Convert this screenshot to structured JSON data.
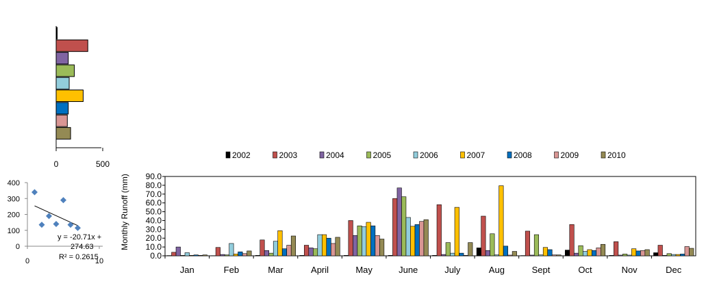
{
  "colors": {
    "series": [
      "#000000",
      "#C0504D",
      "#8064A2",
      "#9BBB59",
      "#92CDDC",
      "#FFC000",
      "#0070C0",
      "#D99694",
      "#948A54"
    ],
    "scatter_marker": "#4F81BD"
  },
  "chart_data": [
    {
      "type": "bar",
      "orientation": "horizontal",
      "series_names": [
        "2002",
        "2003",
        "2004",
        "2005",
        "2006",
        "2007",
        "2008",
        "2009",
        "2010"
      ],
      "values": [
        10,
        340,
        130,
        195,
        140,
        290,
        130,
        120,
        155
      ],
      "xlim": [
        0,
        500
      ],
      "xticks": [
        "0",
        "500"
      ],
      "title": "",
      "xlabel": "",
      "ylabel": ""
    },
    {
      "type": "scatter",
      "x": [
        1,
        2,
        3,
        4,
        5,
        6,
        7
      ],
      "y": [
        340,
        135,
        190,
        140,
        290,
        135,
        115
      ],
      "xlim": [
        0,
        10
      ],
      "ylim": [
        0,
        400
      ],
      "xticks": [
        "0",
        "10"
      ],
      "yticks": [
        "0",
        "100",
        "200",
        "300",
        "400"
      ],
      "trendline": {
        "slope": -20.71,
        "intercept": 274.63
      },
      "equation": "y = -20.71x + 274.63",
      "r2": "R² = 0.2615"
    },
    {
      "type": "bar",
      "categories": [
        "Jan",
        "Feb",
        "Mar",
        "April",
        "May",
        "June",
        "July",
        "Aug",
        "Sept",
        "Oct",
        "Nov",
        "Dec"
      ],
      "ylabel": "Monthly  Runoff (mm)",
      "ylim": [
        0,
        90
      ],
      "yticks": [
        "0.0",
        "10.0",
        "20.0",
        "30.0",
        "40.0",
        "50.0",
        "60.0",
        "70.0",
        "80.0",
        "90.0"
      ],
      "legend_position": "top",
      "series": [
        {
          "name": "2002",
          "values": [
            0.3,
            0.2,
            0.5,
            0.5,
            0.5,
            0.5,
            0.5,
            9,
            0.3,
            6.5,
            0.5,
            3.5
          ]
        },
        {
          "name": "2003",
          "values": [
            4,
            9.5,
            18,
            12,
            40,
            65,
            58,
            45,
            28,
            35.5,
            16,
            12
          ]
        },
        {
          "name": "2004",
          "values": [
            10,
            1.5,
            6,
            9,
            23,
            77,
            1.5,
            6,
            0.8,
            3,
            0.8,
            0.5
          ]
        },
        {
          "name": "2005",
          "values": [
            0.5,
            1,
            3,
            8,
            34,
            67,
            15,
            25,
            24,
            11.5,
            2,
            2.5
          ]
        },
        {
          "name": "2006",
          "values": [
            3.5,
            14,
            16.5,
            24,
            33,
            43.5,
            3,
            1,
            1,
            5,
            0.8,
            1.5
          ]
        },
        {
          "name": "2007",
          "values": [
            0.5,
            2,
            28.5,
            24,
            38,
            33.5,
            55,
            79.5,
            9.5,
            7,
            8,
            1.5
          ]
        },
        {
          "name": "2008",
          "values": [
            1,
            4.5,
            8,
            20,
            34,
            35.5,
            3,
            11,
            7,
            6,
            5.5,
            2
          ]
        },
        {
          "name": "2009",
          "values": [
            0.5,
            2.5,
            12,
            14,
            23,
            39,
            0.5,
            0.8,
            1,
            9,
            6,
            10.5
          ]
        },
        {
          "name": "2010",
          "values": [
            1,
            5.5,
            22.5,
            21,
            19,
            41,
            15,
            5,
            1,
            13,
            7,
            8.5
          ]
        }
      ]
    }
  ]
}
